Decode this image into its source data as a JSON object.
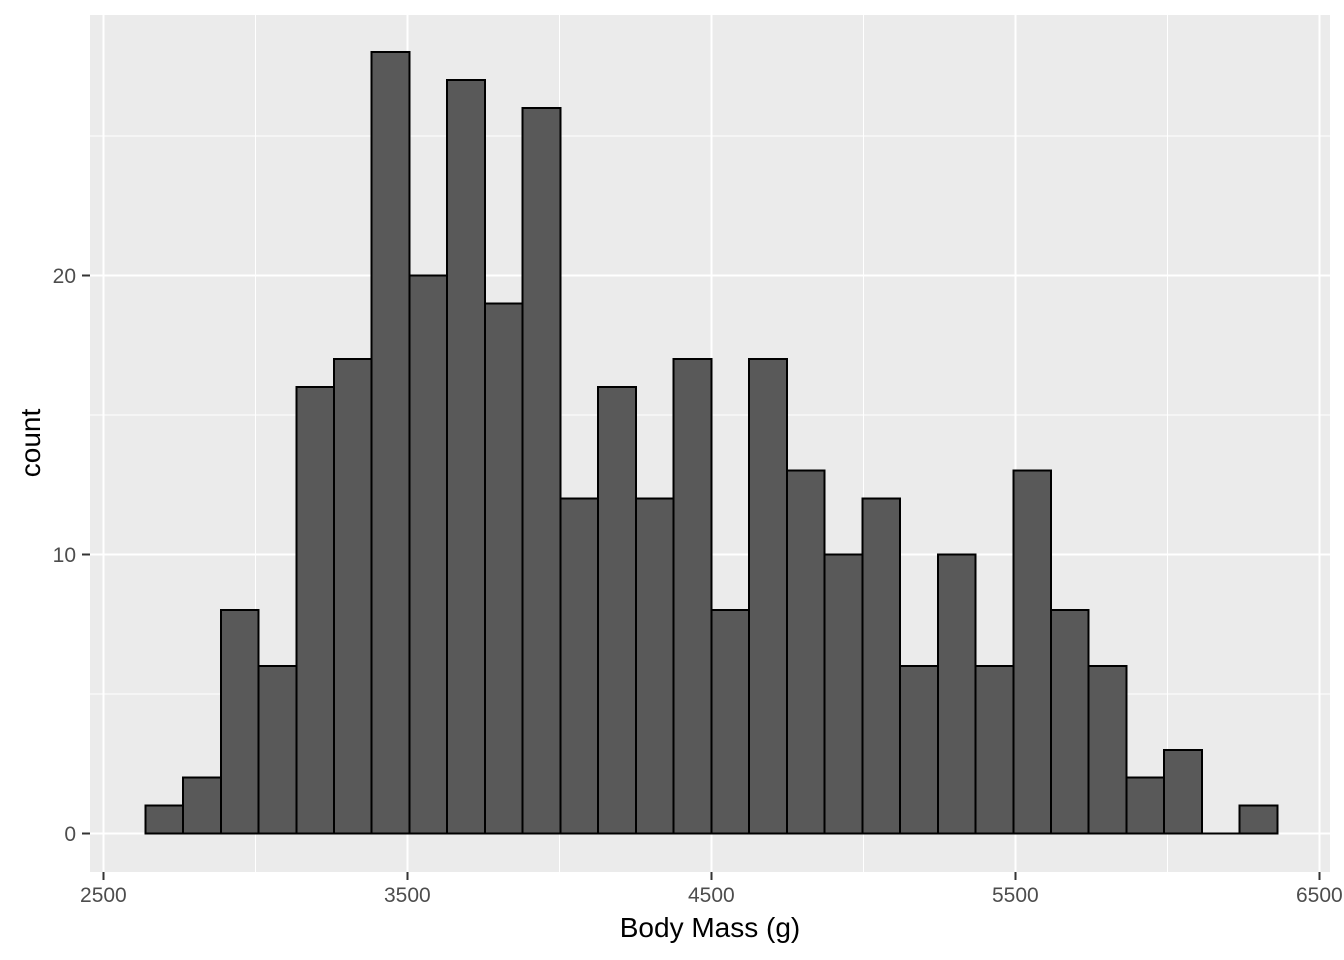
{
  "chart_data": {
    "type": "bar",
    "subtype": "histogram",
    "title": "",
    "xlabel": "Body Mass (g)",
    "ylabel": "count",
    "bin_width": 124.14,
    "bin_centers": [
      2700.0,
      2824.1,
      2948.3,
      3072.4,
      3196.6,
      3320.7,
      3444.8,
      3569.0,
      3693.1,
      3817.2,
      3941.4,
      4065.5,
      4189.7,
      4313.8,
      4437.9,
      4562.1,
      4686.2,
      4810.3,
      4934.5,
      5058.6,
      5182.8,
      5306.9,
      5431.0,
      5555.2,
      5679.3,
      5803.4,
      5927.6,
      6051.7,
      6175.9,
      6300.0
    ],
    "counts": [
      1,
      2,
      8,
      6,
      16,
      17,
      28,
      20,
      27,
      19,
      26,
      12,
      16,
      12,
      17,
      8,
      17,
      13,
      10,
      12,
      6,
      10,
      6,
      13,
      8,
      6,
      2,
      3,
      0,
      1
    ],
    "total_count": 342,
    "xlim": [
      2456,
      6535
    ],
    "ylim": [
      -1.38,
      29.33
    ],
    "x_ticks": [
      2500,
      3500,
      4500,
      5500,
      6500
    ],
    "y_ticks": [
      0,
      10,
      20
    ],
    "x_minor": [
      3000,
      4000,
      5000,
      6000
    ],
    "y_minor": [
      5,
      15,
      25
    ],
    "grid": true,
    "legend": "none",
    "colors": {
      "bar_fill": "#595959",
      "bar_stroke": "#000000",
      "panel_background": "#EBEBEB",
      "grid": "#FFFFFF",
      "tick_text": "#4D4D4D",
      "tick_mark": "#333333",
      "axis_title": "#000000",
      "figure_background": "#FFFFFF"
    }
  }
}
